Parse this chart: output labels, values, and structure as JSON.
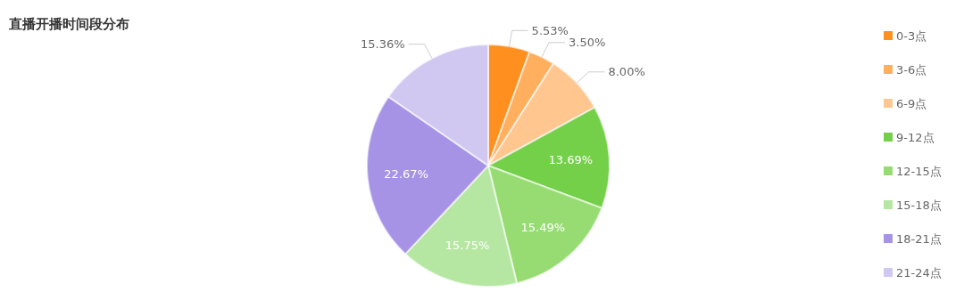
{
  "chart_data": {
    "type": "pie",
    "title": "直播开播时间段分布",
    "categories": [
      "0-3点",
      "3-6点",
      "6-9点",
      "9-12点",
      "12-15点",
      "15-18点",
      "18-21点",
      "21-24点"
    ],
    "values": [
      5.53,
      3.5,
      8.0,
      13.69,
      15.49,
      15.75,
      22.67,
      15.36
    ],
    "value_labels": [
      "5.53%",
      "3.50%",
      "8.00%",
      "13.69%",
      "15.49%",
      "15.75%",
      "22.67%",
      "15.36%"
    ],
    "colors": [
      "#ff8f1f",
      "#ffaf5e",
      "#ffc78f",
      "#74cf49",
      "#97dc72",
      "#b6e7a2",
      "#a693e6",
      "#d1c8f2"
    ],
    "legend": "right"
  }
}
